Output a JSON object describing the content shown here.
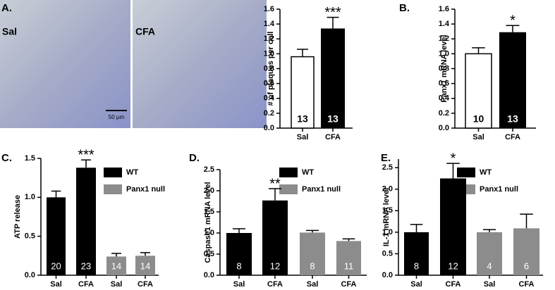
{
  "micrographs": [
    {
      "label": "Sal"
    },
    {
      "label": "CFA"
    }
  ],
  "scale_bar": "50 μm",
  "chart_data": [
    {
      "type": "bar",
      "panel": "A.",
      "ylabel": "# of plaques per cell",
      "categories": [
        "Sal",
        "CFA"
      ],
      "values": [
        0.96,
        1.34
      ],
      "errors": [
        0.1,
        0.15
      ],
      "n": [
        13,
        13
      ],
      "colors": [
        "#ffffff",
        "#000000"
      ],
      "annotations": [
        {
          "text": "***",
          "category_index": 1
        }
      ],
      "ylim": [
        0,
        1.6
      ],
      "yticks": [
        {
          "value": 0,
          "label": "0.0"
        },
        0.2,
        0.4,
        0.6,
        0.8,
        {
          "value": 1,
          "label": "1.0"
        },
        1.2,
        1.4,
        1.6
      ]
    },
    {
      "type": "bar",
      "panel": "B.",
      "ylabel": "Panx1 mRNA level",
      "categories": [
        "Sal",
        "CFA"
      ],
      "values": [
        1.0,
        1.29
      ],
      "errors": [
        0.08,
        0.09
      ],
      "n": [
        10,
        13
      ],
      "colors": [
        "#ffffff",
        "#000000"
      ],
      "annotations": [
        {
          "text": "*",
          "category_index": 1
        }
      ],
      "ylim": [
        0,
        1.6
      ],
      "yticks": [
        {
          "value": 0,
          "label": "0.0"
        },
        0.2,
        0.4,
        0.6,
        0.8,
        {
          "value": 1,
          "label": "1.0"
        },
        1.2,
        1.4,
        1.6
      ]
    },
    {
      "type": "bar",
      "panel": "C.",
      "ylabel": "ATP release",
      "categories": [
        "Sal",
        "CFA",
        "Sal",
        "CFA"
      ],
      "series": [
        {
          "name": "WT",
          "color": "#000000",
          "values": [
            1.0,
            1.38,
            null,
            null
          ],
          "errors": [
            0.08,
            0.1,
            null,
            null
          ],
          "n": [
            20,
            23,
            null,
            null
          ]
        },
        {
          "name": "Panx1 null",
          "color": "#8c8c8c",
          "values": [
            null,
            null,
            0.24,
            0.25
          ],
          "errors": [
            null,
            null,
            0.04,
            0.04
          ],
          "n": [
            null,
            null,
            14,
            14
          ]
        }
      ],
      "annotations": [
        {
          "text": "***",
          "category_index": 1
        }
      ],
      "ylim": [
        0,
        1.5
      ],
      "yticks": [
        {
          "value": 0,
          "label": "0.0"
        },
        0.5,
        {
          "value": 1,
          "label": "1.0"
        },
        1.5
      ]
    },
    {
      "type": "bar",
      "panel": "D.",
      "ylabel": "Caspase1 mRNA level",
      "categories": [
        "Sal",
        "CFA",
        "Sal",
        "CFA"
      ],
      "series": [
        {
          "name": "WT",
          "color": "#000000",
          "values": [
            1.0,
            1.77,
            null,
            null
          ],
          "errors": [
            0.1,
            0.28,
            null,
            null
          ],
          "n": [
            8,
            12,
            null,
            null
          ]
        },
        {
          "name": "Panx1 null",
          "color": "#8c8c8c",
          "values": [
            null,
            null,
            1.01,
            0.81
          ],
          "errors": [
            null,
            null,
            0.05,
            0.05
          ],
          "n": [
            null,
            null,
            8,
            11
          ]
        }
      ],
      "annotations": [
        {
          "text": "**",
          "category_index": 1
        }
      ],
      "ylim": [
        0,
        2.5
      ],
      "yticks": [
        {
          "value": 0,
          "label": "0.0"
        },
        0.5,
        {
          "value": 1,
          "label": "1.0"
        },
        1.5,
        {
          "value": 2,
          "label": "2.0"
        },
        2.5
      ]
    },
    {
      "type": "bar",
      "panel": "E.",
      "ylabel": "IL-1 mRNA level",
      "categories": [
        "Sal",
        "CFA",
        "Sal",
        "CFA"
      ],
      "series": [
        {
          "name": "WT",
          "color": "#000000",
          "values": [
            1.0,
            2.25,
            null,
            null
          ],
          "errors": [
            0.18,
            0.35,
            null,
            null
          ],
          "n": [
            8,
            12,
            null,
            null
          ]
        },
        {
          "name": "Panx1 null",
          "color": "#8c8c8c",
          "values": [
            null,
            null,
            1.0,
            1.09
          ],
          "errors": [
            null,
            null,
            0.06,
            0.33
          ],
          "n": [
            null,
            null,
            4,
            6
          ]
        }
      ],
      "annotations": [
        {
          "text": "*",
          "category_index": 1
        }
      ],
      "ylim": [
        0,
        2.7
      ],
      "yticks": [
        {
          "value": 0,
          "label": "0.0"
        },
        0.5,
        {
          "value": 1,
          "label": "1.0"
        },
        1.5,
        {
          "value": 2,
          "label": "2.0"
        },
        2.5
      ]
    }
  ]
}
